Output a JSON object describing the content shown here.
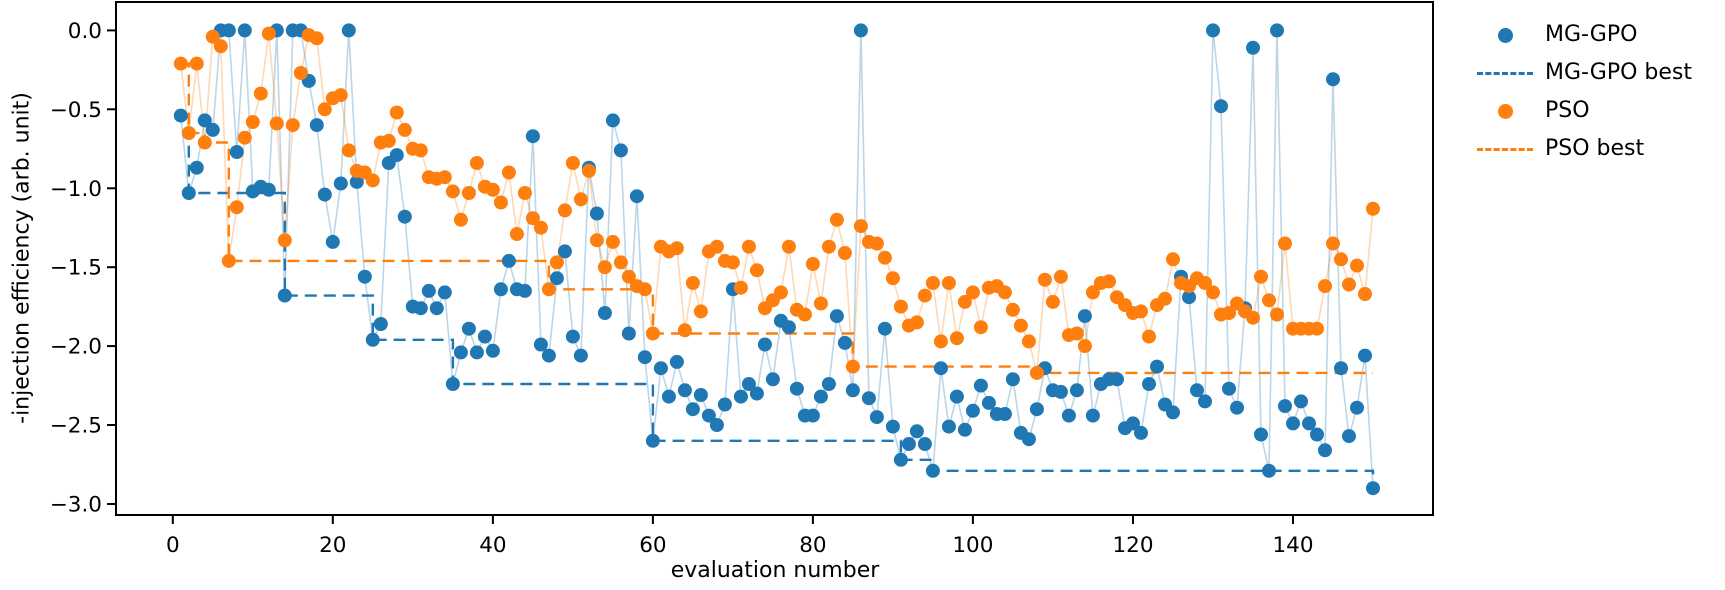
{
  "figure": {
    "background": "#ffffff"
  },
  "chart_data": {
    "type": "scatter",
    "title": "",
    "xlabel": "evaluation number",
    "ylabel": "-injection efficiency (arb. unit)",
    "grid": false,
    "legend_position": "outside-right-top",
    "xlim": [
      -7.1,
      157.5
    ],
    "ylim": [
      -3.07,
      0.18
    ],
    "x_start": 1,
    "x_step": 1,
    "x_tick_values": [
      0,
      20,
      40,
      60,
      80,
      100,
      120,
      140
    ],
    "x_tick_labels": [
      "0",
      "20",
      "40",
      "60",
      "80",
      "100",
      "120",
      "140"
    ],
    "y_tick_values": [
      0,
      -0.5,
      -1,
      -1.5,
      -2,
      -2.5,
      -3
    ],
    "y_tick_labels": [
      "0.0",
      "−0.5",
      "−1.0",
      "−1.5",
      "−2.0",
      "−2.5",
      "−3.0"
    ],
    "series": [
      {
        "name": "MG-GPO",
        "color": "#1f77b4",
        "style": "scatter-with-faint-line",
        "marker": "dot",
        "values": [
          -0.54,
          -1.03,
          -0.87,
          -0.57,
          -0.63,
          0.0,
          0.0,
          -0.77,
          0.0,
          -1.02,
          -0.99,
          -1.01,
          0.0,
          -1.68,
          0.0,
          0.0,
          -0.32,
          -0.6,
          -1.04,
          -1.34,
          -0.97,
          0.0,
          -0.96,
          -1.56,
          -1.96,
          -1.86,
          -0.84,
          -0.79,
          -1.18,
          -1.75,
          -1.76,
          -1.65,
          -1.76,
          -1.66,
          -2.24,
          -2.04,
          -1.89,
          -2.04,
          -1.94,
          -2.03,
          -1.64,
          -1.46,
          -1.64,
          -1.65,
          -0.67,
          -1.99,
          -2.06,
          -1.57,
          -1.4,
          -1.94,
          -2.06,
          -0.87,
          -1.16,
          -1.79,
          -0.57,
          -0.76,
          -1.92,
          -1.05,
          -2.07,
          -2.6,
          -2.14,
          -2.32,
          -2.1,
          -2.28,
          -2.4,
          -2.31,
          -2.44,
          -2.5,
          -2.37,
          -1.64,
          -2.32,
          -2.24,
          -2.3,
          -1.99,
          -2.21,
          -1.84,
          -1.88,
          -2.27,
          -2.44,
          -2.44,
          -2.32,
          -2.24,
          -1.81,
          -1.98,
          -2.28,
          0.0,
          -2.33,
          -2.45,
          -1.89,
          -2.51,
          -2.72,
          -2.62,
          -2.54,
          -2.62,
          -2.79,
          -2.14,
          -2.51,
          -2.32,
          -2.53,
          -2.41,
          -2.25,
          -2.36,
          -2.43,
          -2.43,
          -2.21,
          -2.55,
          -2.59,
          -2.4,
          -2.14,
          -2.28,
          -2.29,
          -2.44,
          -2.28,
          -1.81,
          -2.44,
          -2.24,
          -2.21,
          -2.21,
          -2.52,
          -2.49,
          -2.55,
          -2.24,
          -2.13,
          -2.37,
          -2.42,
          -1.56,
          -1.69,
          -2.28,
          -2.35,
          0.0,
          -0.48,
          -2.27,
          -2.39,
          -1.76,
          -0.11,
          -2.56,
          -2.79,
          0.0,
          -2.38,
          -2.49,
          -2.35,
          -2.49,
          -2.56,
          -2.66,
          -0.31,
          -2.14,
          -2.57,
          -2.39,
          -2.06,
          -2.9
        ]
      },
      {
        "name": "MG-GPO best",
        "color": "#1f77b4",
        "style": "dashed-step-running-min",
        "best_of": "MG-GPO",
        "step_levels": [
          -0.54,
          -1.03,
          -1.68,
          -1.96,
          -2.24,
          -2.6,
          -2.72,
          -2.79,
          -2.9
        ],
        "step_at_eval": [
          1,
          2,
          14,
          25,
          35,
          60,
          91,
          95,
          150
        ]
      },
      {
        "name": "PSO",
        "color": "#ff7f0e",
        "style": "scatter-with-faint-line",
        "marker": "dot",
        "values": [
          -0.21,
          -0.65,
          -0.21,
          -0.71,
          -0.04,
          -0.1,
          -1.46,
          -1.12,
          -0.68,
          -0.58,
          -0.4,
          -0.02,
          -0.59,
          -1.33,
          -0.6,
          -0.27,
          -0.03,
          -0.05,
          -0.5,
          -0.43,
          -0.41,
          -0.76,
          -0.89,
          -0.9,
          -0.95,
          -0.71,
          -0.7,
          -0.52,
          -0.63,
          -0.75,
          -0.76,
          -0.93,
          -0.94,
          -0.93,
          -1.02,
          -1.2,
          -1.03,
          -0.84,
          -0.99,
          -1.01,
          -1.09,
          -0.9,
          -1.29,
          -1.03,
          -1.19,
          -1.25,
          -1.64,
          -1.47,
          -1.14,
          -0.84,
          -1.07,
          -0.89,
          -1.33,
          -1.5,
          -1.34,
          -1.47,
          -1.56,
          -1.62,
          -1.64,
          -1.92,
          -1.37,
          -1.4,
          -1.38,
          -1.9,
          -1.6,
          -1.78,
          -1.4,
          -1.37,
          -1.46,
          -1.47,
          -1.63,
          -1.37,
          -1.52,
          -1.76,
          -1.71,
          -1.66,
          -1.37,
          -1.77,
          -1.8,
          -1.48,
          -1.73,
          -1.37,
          -1.2,
          -1.41,
          -2.13,
          -1.24,
          -1.34,
          -1.35,
          -1.44,
          -1.57,
          -1.75,
          -1.87,
          -1.85,
          -1.68,
          -1.6,
          -1.97,
          -1.6,
          -1.95,
          -1.72,
          -1.66,
          -1.88,
          -1.63,
          -1.62,
          -1.66,
          -1.77,
          -1.87,
          -1.97,
          -2.17,
          -1.58,
          -1.72,
          -1.56,
          -1.93,
          -1.92,
          -2.0,
          -1.66,
          -1.6,
          -1.59,
          -1.69,
          -1.74,
          -1.79,
          -1.78,
          -1.94,
          -1.74,
          -1.7,
          -1.45,
          -1.6,
          -1.62,
          -1.57,
          -1.6,
          -1.66,
          -1.8,
          -1.79,
          -1.73,
          -1.78,
          -1.82,
          -1.56,
          -1.71,
          -1.8,
          -1.35,
          -1.89,
          -1.89,
          -1.89,
          -1.89,
          -1.62,
          -1.35,
          -1.45,
          -1.61,
          -1.49,
          -1.67,
          -1.13
        ]
      },
      {
        "name": "PSO best",
        "color": "#ff7f0e",
        "style": "dashed-step-running-min",
        "best_of": "PSO",
        "step_levels": [
          -0.21,
          -0.65,
          -0.71,
          -1.46,
          -1.64,
          -1.92,
          -2.13,
          -2.17
        ],
        "step_at_eval": [
          1,
          2,
          4,
          7,
          47,
          60,
          85,
          108
        ]
      }
    ]
  },
  "legend": {
    "items": [
      {
        "label": "MG-GPO",
        "marker": "dot"
      },
      {
        "label": "MG-GPO best",
        "marker": "dashed-line"
      },
      {
        "label": "PSO",
        "marker": "dot"
      },
      {
        "label": "PSO best",
        "marker": "dashed-line"
      }
    ]
  }
}
